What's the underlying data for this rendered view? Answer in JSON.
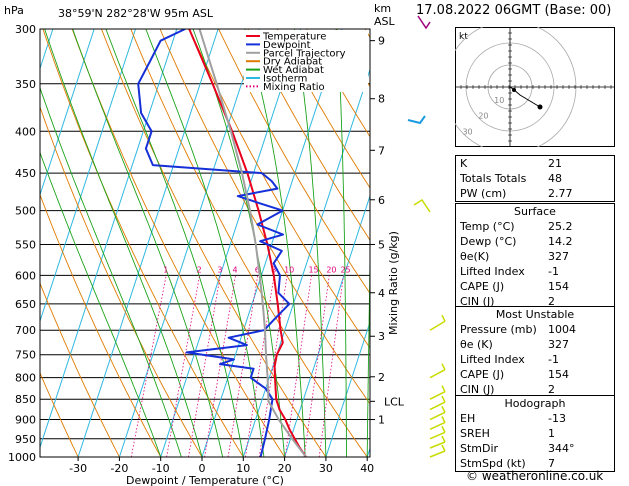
{
  "header": {
    "location": "38°59'N  282°28'W  95m  ASL",
    "datetime": "17.08.2022  06GMT  (Base: 00)"
  },
  "chart_data": {
    "type": "line",
    "title": "",
    "xlabel": "Dewpoint / Temperature (°C)",
    "ylabel_left": "hPa",
    "ylabel_right": "Mixing Ratio (g/kg)",
    "km_label": "km\nASL",
    "x_ticks": [
      -30,
      -20,
      -10,
      0,
      10,
      20,
      30,
      40
    ],
    "pressure_levels": [
      300,
      350,
      400,
      450,
      500,
      550,
      600,
      650,
      700,
      750,
      800,
      850,
      900,
      950,
      1000
    ],
    "km_ticks": [
      {
        "km": "9",
        "p": 310
      },
      {
        "km": "8",
        "p": 365
      },
      {
        "km": "7",
        "p": 422
      },
      {
        "km": "6",
        "p": 485
      },
      {
        "km": "5",
        "p": 550
      },
      {
        "km": "4",
        "p": 630
      },
      {
        "km": "3",
        "p": 712
      },
      {
        "km": "2",
        "p": 798
      },
      {
        "km": "1",
        "p": 900
      }
    ],
    "lcl": {
      "label": "LCL",
      "p": 855
    },
    "mixing_ratio_labels": [
      "1",
      "2",
      "3",
      "4",
      "6",
      "8",
      "10",
      "15",
      "20",
      "25"
    ],
    "legend": [
      "Temperature",
      "Dewpoint",
      "Parcel Trajectory",
      "Dry Adiabat",
      "Wet Adiabat",
      "Isotherm",
      "Mixing Ratio"
    ],
    "series": [
      {
        "name": "Temperature",
        "color": "#e8001c",
        "points": [
          [
            1000,
            25.2
          ],
          [
            975,
            23.0
          ],
          [
            950,
            21.0
          ],
          [
            925,
            19.0
          ],
          [
            900,
            17.2
          ],
          [
            875,
            15.0
          ],
          [
            850,
            13.4
          ],
          [
            800,
            11.4
          ],
          [
            775,
            10.4
          ],
          [
            750,
            10.0
          ],
          [
            725,
            10.5
          ],
          [
            700,
            9.0
          ],
          [
            650,
            6.2
          ],
          [
            600,
            3.0
          ],
          [
            550,
            -1.0
          ],
          [
            500,
            -5.8
          ],
          [
            450,
            -11.5
          ],
          [
            400,
            -18.5
          ],
          [
            350,
            -27.0
          ],
          [
            300,
            -37.0
          ]
        ]
      },
      {
        "name": "Dewpoint",
        "color": "#1530d8",
        "points": [
          [
            1000,
            14.2
          ],
          [
            950,
            13.8
          ],
          [
            900,
            13.3
          ],
          [
            850,
            12.5
          ],
          [
            825,
            10.0
          ],
          [
            800,
            5.5
          ],
          [
            780,
            5.5
          ],
          [
            770,
            -3.0
          ],
          [
            760,
            0.0
          ],
          [
            745,
            -12.0
          ],
          [
            730,
            2.0
          ],
          [
            715,
            -3.0
          ],
          [
            700,
            5.0
          ],
          [
            680,
            6.5
          ],
          [
            650,
            9.0
          ],
          [
            630,
            5.5
          ],
          [
            600,
            4.5
          ],
          [
            580,
            2.0
          ],
          [
            560,
            3.0
          ],
          [
            545,
            -3.0
          ],
          [
            535,
            2.0
          ],
          [
            520,
            -5.0
          ],
          [
            500,
            0.0
          ],
          [
            490,
            -6.0
          ],
          [
            480,
            -12.0
          ],
          [
            470,
            -3.0
          ],
          [
            460,
            -5.0
          ],
          [
            450,
            -8.0
          ],
          [
            440,
            -35.0
          ],
          [
            420,
            -38.0
          ],
          [
            400,
            -38.0
          ],
          [
            380,
            -42.0
          ],
          [
            350,
            -45.0
          ],
          [
            330,
            -44.0
          ],
          [
            310,
            -43.0
          ],
          [
            300,
            -38.0
          ]
        ]
      },
      {
        "name": "Parcel Trajectory",
        "color": "#a0a0a0",
        "points": [
          [
            1000,
            25.2
          ],
          [
            950,
            20.4
          ],
          [
            900,
            15.6
          ],
          [
            855,
            11.7
          ],
          [
            800,
            9.6
          ],
          [
            750,
            7.4
          ],
          [
            700,
            5.2
          ],
          [
            650,
            2.6
          ],
          [
            600,
            -0.4
          ],
          [
            550,
            -3.8
          ],
          [
            500,
            -7.9
          ],
          [
            450,
            -12.8
          ],
          [
            400,
            -18.8
          ],
          [
            350,
            -26.0
          ],
          [
            300,
            -34.5
          ]
        ]
      }
    ]
  },
  "wind_barbs_color": "#c8dc00",
  "hodograph": {
    "label": "kt",
    "ring_labels": [
      "10",
      "20",
      "30"
    ]
  },
  "indices": {
    "rows": [
      {
        "k": "K",
        "v": "21"
      },
      {
        "k": "Totals Totals",
        "v": "48"
      },
      {
        "k": "PW (cm)",
        "v": "2.77"
      }
    ]
  },
  "surface": {
    "title": "Surface",
    "rows": [
      {
        "k": "Temp (°C)",
        "v": "25.2"
      },
      {
        "k": "Dewp (°C)",
        "v": "14.2"
      },
      {
        "k": "θe(K)",
        "v": "327"
      },
      {
        "k": "Lifted Index",
        "v": "-1"
      },
      {
        "k": "CAPE (J)",
        "v": "154"
      },
      {
        "k": "CIN (J)",
        "v": "2"
      }
    ]
  },
  "most_unstable": {
    "title": "Most Unstable",
    "rows": [
      {
        "k": "Pressure (mb)",
        "v": "1004"
      },
      {
        "k": "θe (K)",
        "v": "327"
      },
      {
        "k": "Lifted Index",
        "v": "-1"
      },
      {
        "k": "CAPE (J)",
        "v": "154"
      },
      {
        "k": "CIN (J)",
        "v": "2"
      }
    ]
  },
  "hodograph_table": {
    "title": "Hodograph",
    "rows": [
      {
        "k": "EH",
        "v": "-13"
      },
      {
        "k": "SREH",
        "v": "1"
      },
      {
        "k": "StmDir",
        "v": "344°"
      },
      {
        "k": "StmSpd (kt)",
        "v": "7"
      }
    ]
  },
  "footer": "© weatheronline.co.uk"
}
